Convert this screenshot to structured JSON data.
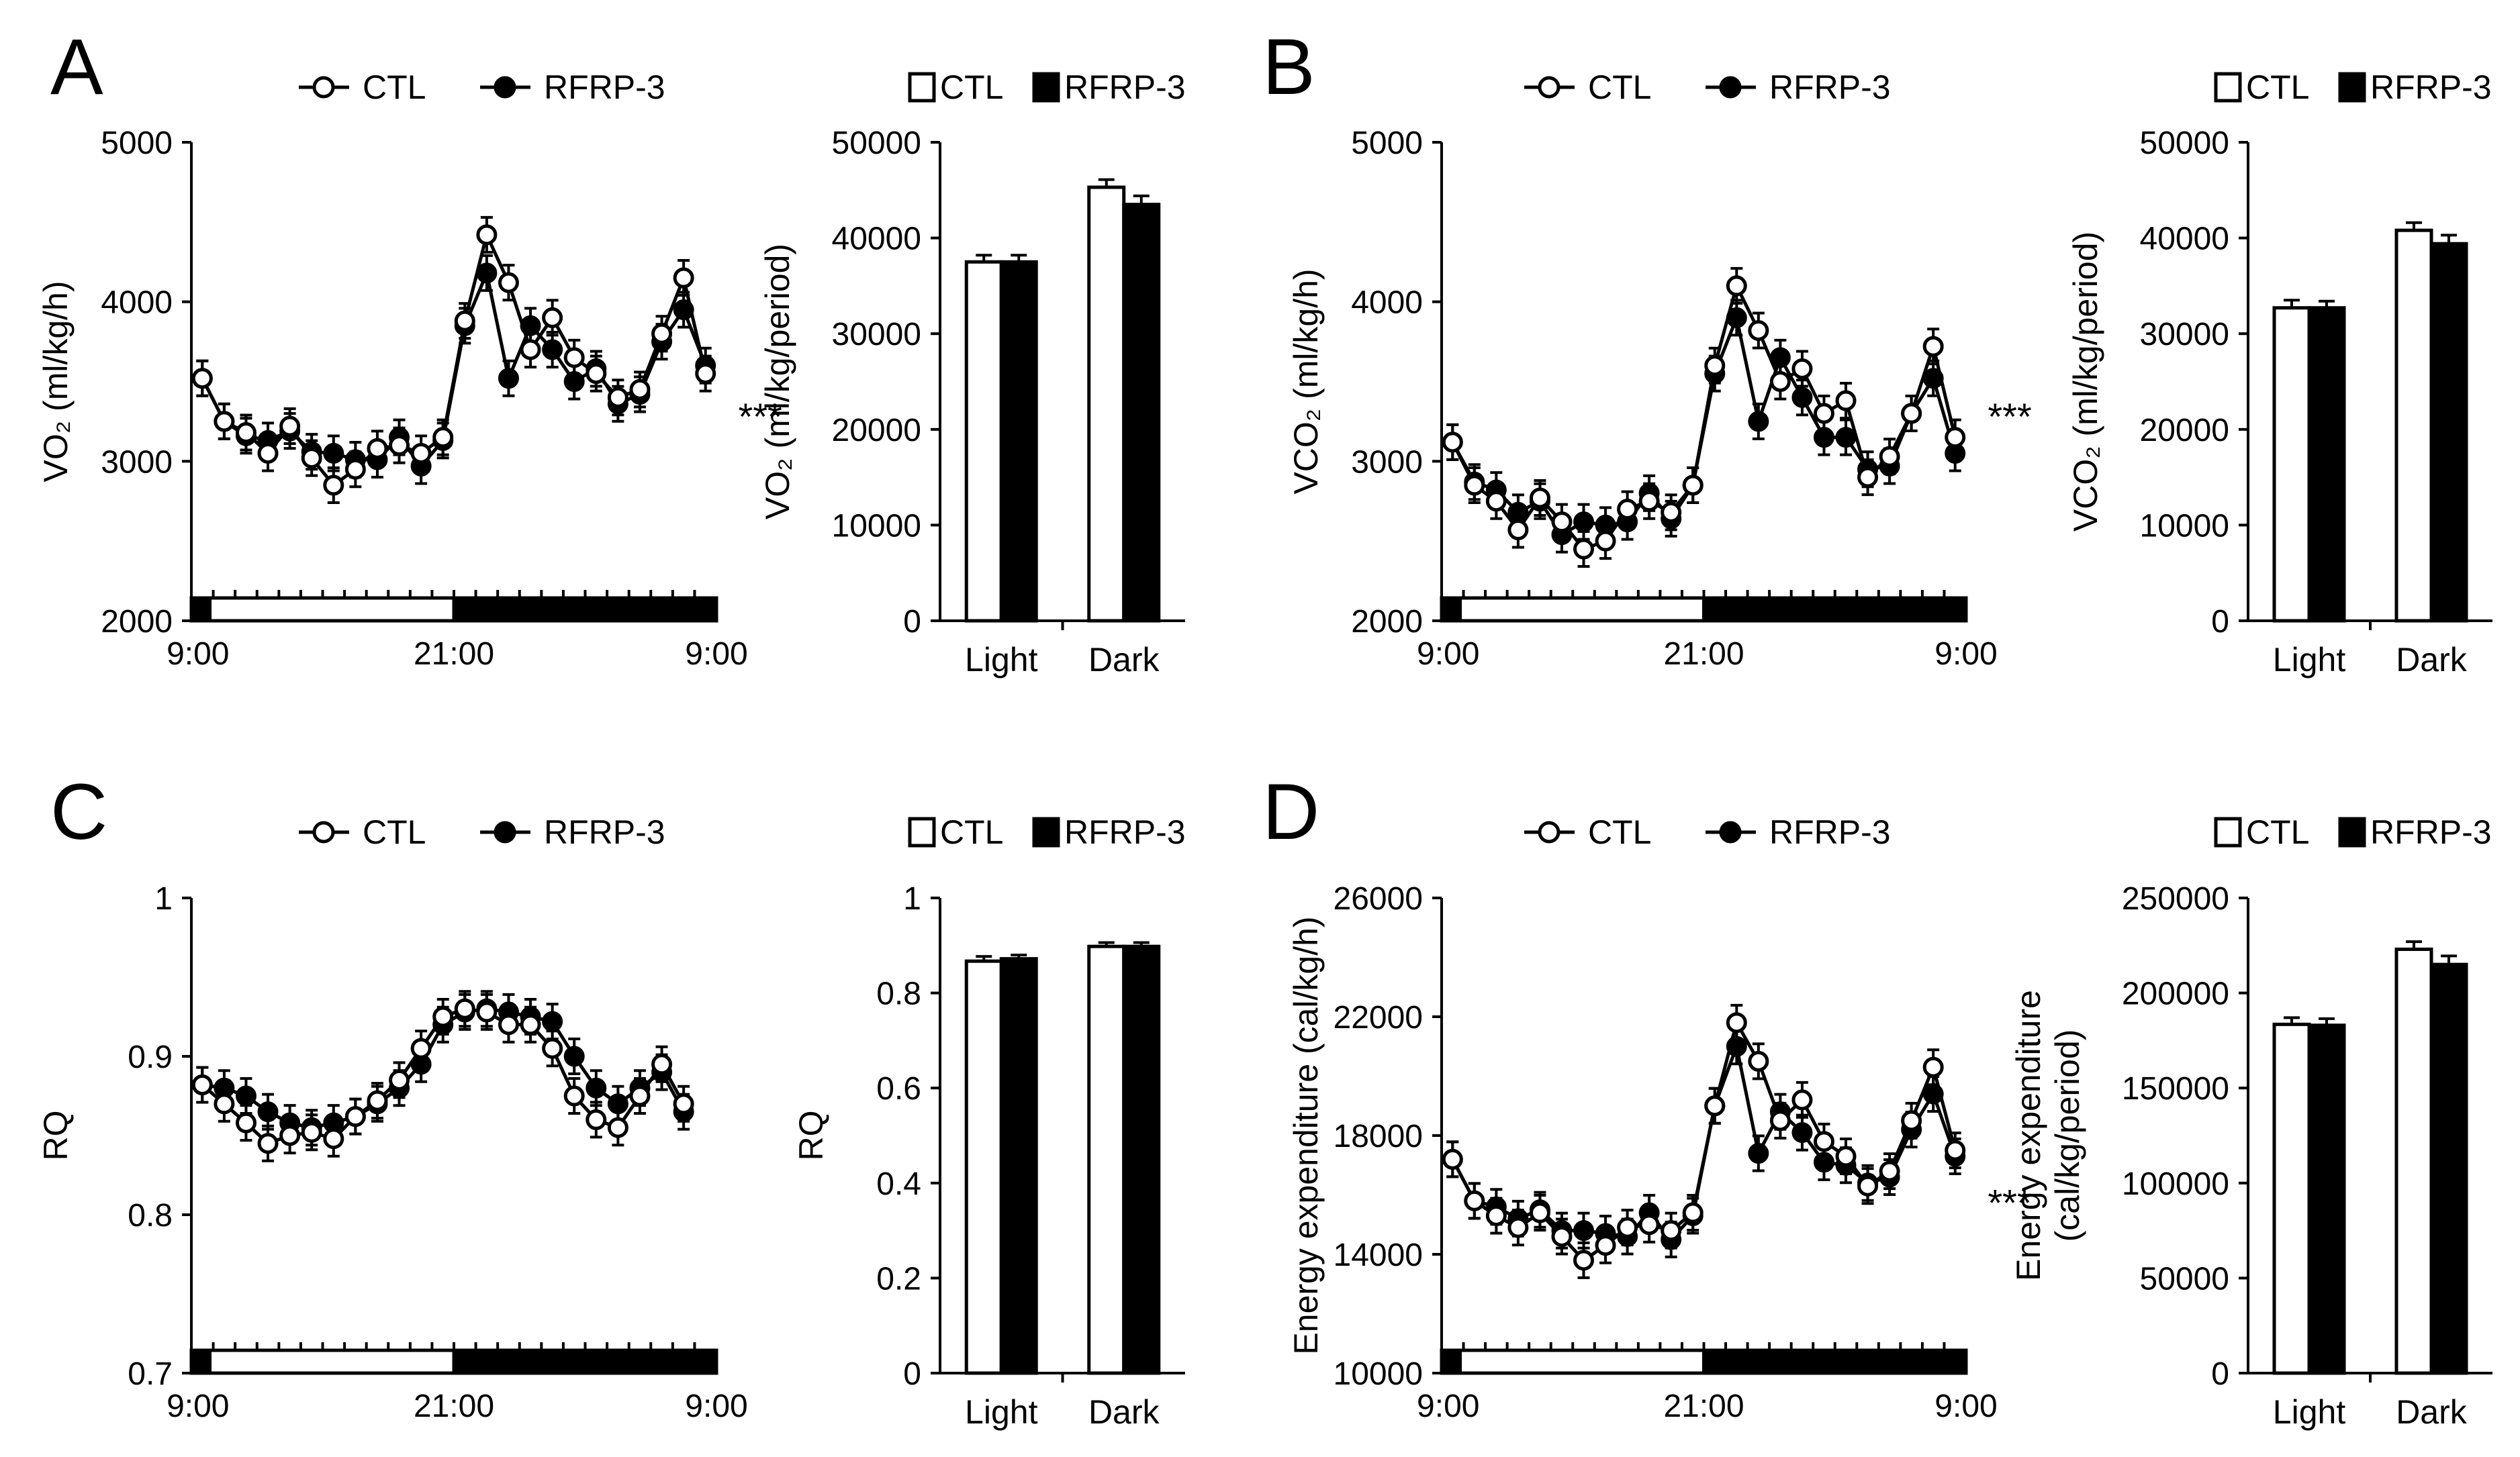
{
  "figure": {
    "time_ticks": [
      "9:00",
      "21:00",
      "9:00"
    ],
    "legend": {
      "ctl": "CTL",
      "rfrp": "RFRP-3"
    },
    "colors": {
      "ctl": "#ffffff",
      "rfrp": "#000000",
      "stroke": "#000000"
    }
  },
  "chart_data": [
    {
      "id": "A-line",
      "panel": "A",
      "type": "line",
      "ylabel": "VO₂ (ml/kg/h)",
      "ylim": [
        2000,
        5000
      ],
      "yticks": [
        "2000",
        "3000",
        "4000",
        "5000"
      ],
      "annotation": "***",
      "annotation_hour": 26,
      "series": [
        {
          "name": "CTL",
          "values": [
            3520,
            3250,
            3180,
            3050,
            3220,
            3020,
            2850,
            2950,
            3080,
            3100,
            3050,
            3150,
            3880,
            4420,
            4120,
            3700,
            3900,
            3650,
            3550,
            3400,
            3450,
            3800,
            4150,
            3550
          ]
        },
        {
          "name": "RFRP-3",
          "values": [
            3520,
            3250,
            3160,
            3130,
            3190,
            3060,
            3050,
            3010,
            3010,
            3150,
            2970,
            3130,
            3850,
            4180,
            3520,
            3850,
            3700,
            3500,
            3580,
            3360,
            3420,
            3750,
            3950,
            3600
          ]
        }
      ]
    },
    {
      "id": "A-bar",
      "panel": "A",
      "type": "bar",
      "ylabel": "VO₂ (ml/kg/period)",
      "ylim": [
        0,
        50000
      ],
      "yticks": [
        "0",
        "10000",
        "20000",
        "30000",
        "40000",
        "50000"
      ],
      "categories": [
        "Light",
        "Dark"
      ],
      "series": [
        {
          "name": "CTL",
          "values": [
            37500,
            45300
          ],
          "errors": [
            700,
            800
          ]
        },
        {
          "name": "RFRP-3",
          "values": [
            37500,
            43500
          ],
          "errors": [
            700,
            900
          ]
        }
      ]
    },
    {
      "id": "B-line",
      "panel": "B",
      "type": "line",
      "ylabel": "VCO₂ (ml/kg/h)",
      "ylim": [
        2000,
        5000
      ],
      "yticks": [
        "2000",
        "3000",
        "4000",
        "5000"
      ],
      "annotation": "***",
      "annotation_hour": 26,
      "series": [
        {
          "name": "CTL",
          "values": [
            3120,
            2850,
            2750,
            2570,
            2770,
            2620,
            2450,
            2500,
            2700,
            2750,
            2680,
            2850,
            3600,
            4100,
            3820,
            3500,
            3580,
            3300,
            3380,
            2900,
            3030,
            3300,
            3720,
            3150
          ]
        },
        {
          "name": "RFRP-3",
          "values": [
            3120,
            2870,
            2820,
            2680,
            2750,
            2540,
            2620,
            2600,
            2620,
            2800,
            2640,
            2850,
            3550,
            3900,
            3250,
            3650,
            3400,
            3150,
            3150,
            2950,
            2970,
            3300,
            3520,
            3050
          ]
        }
      ]
    },
    {
      "id": "B-bar",
      "panel": "B",
      "type": "bar",
      "ylabel": "VCO₂ (ml/kg/period)",
      "ylim": [
        0,
        50000
      ],
      "yticks": [
        "0",
        "10000",
        "20000",
        "30000",
        "40000",
        "50000"
      ],
      "categories": [
        "Light",
        "Dark"
      ],
      "series": [
        {
          "name": "CTL",
          "values": [
            32700,
            40800
          ],
          "errors": [
            800,
            800
          ]
        },
        {
          "name": "RFRP-3",
          "values": [
            32700,
            39400
          ],
          "errors": [
            700,
            900
          ]
        }
      ]
    },
    {
      "id": "C-line",
      "panel": "C",
      "type": "line",
      "ylabel": "RQ",
      "ylim": [
        0.7,
        1.0
      ],
      "yticks": [
        "0.7",
        "0.8",
        "0.9",
        "1"
      ],
      "series": [
        {
          "name": "CTL",
          "values": [
            0.882,
            0.87,
            0.858,
            0.845,
            0.85,
            0.852,
            0.848,
            0.862,
            0.872,
            0.885,
            0.905,
            0.925,
            0.93,
            0.928,
            0.92,
            0.92,
            0.905,
            0.875,
            0.86,
            0.855,
            0.875,
            0.895,
            0.87
          ]
        },
        {
          "name": "RFRP-3",
          "values": [
            0.882,
            0.88,
            0.875,
            0.865,
            0.858,
            0.855,
            0.858,
            0.862,
            0.87,
            0.88,
            0.895,
            0.92,
            0.928,
            0.93,
            0.928,
            0.925,
            0.922,
            0.9,
            0.88,
            0.87,
            0.88,
            0.89,
            0.865
          ]
        }
      ]
    },
    {
      "id": "C-bar",
      "panel": "C",
      "type": "bar",
      "ylabel": "RQ",
      "ylim": [
        0,
        1.0
      ],
      "yticks": [
        "0",
        "0.2",
        "0.4",
        "0.6",
        "0.8",
        "1"
      ],
      "categories": [
        "Light",
        "Dark"
      ],
      "series": [
        {
          "name": "CTL",
          "values": [
            0.867,
            0.898
          ],
          "errors": [
            0.01,
            0.008
          ]
        },
        {
          "name": "RFRP-3",
          "values": [
            0.872,
            0.898
          ],
          "errors": [
            0.008,
            0.008
          ]
        }
      ]
    },
    {
      "id": "D-line",
      "panel": "D",
      "type": "line",
      "ylabel": "Energy expenditure (cal/kg/h)",
      "ylim": [
        10000,
        26000
      ],
      "yticks": [
        "10000",
        "14000",
        "18000",
        "22000",
        "26000"
      ],
      "annotation": "***",
      "annotation_hour": 26,
      "series": [
        {
          "name": "CTL",
          "values": [
            17200,
            15800,
            15300,
            14900,
            15400,
            14600,
            13800,
            14300,
            14900,
            15000,
            14800,
            15400,
            19000,
            21800,
            20500,
            18500,
            19200,
            17800,
            17300,
            16300,
            16800,
            18500,
            20300,
            17500
          ]
        },
        {
          "name": "RFRP-3",
          "values": [
            17200,
            15800,
            15600,
            15200,
            15500,
            14800,
            14800,
            14700,
            14600,
            15400,
            14500,
            15300,
            19000,
            21000,
            17400,
            18800,
            18100,
            17100,
            17000,
            16400,
            16600,
            18200,
            19400,
            17300
          ]
        }
      ]
    },
    {
      "id": "D-bar",
      "panel": "D",
      "type": "bar",
      "ylabel": "Energy expenditure (cal/kg/period)",
      "ylim": [
        0,
        250000
      ],
      "yticks": [
        "0",
        "50000",
        "100000",
        "150000",
        "200000",
        "250000"
      ],
      "categories": [
        "Light",
        "Dark"
      ],
      "series": [
        {
          "name": "CTL",
          "values": [
            183500,
            223000
          ],
          "errors": [
            3500,
            4000
          ]
        },
        {
          "name": "RFRP-3",
          "values": [
            183000,
            215000
          ],
          "errors": [
            3500,
            4500
          ]
        }
      ]
    }
  ]
}
